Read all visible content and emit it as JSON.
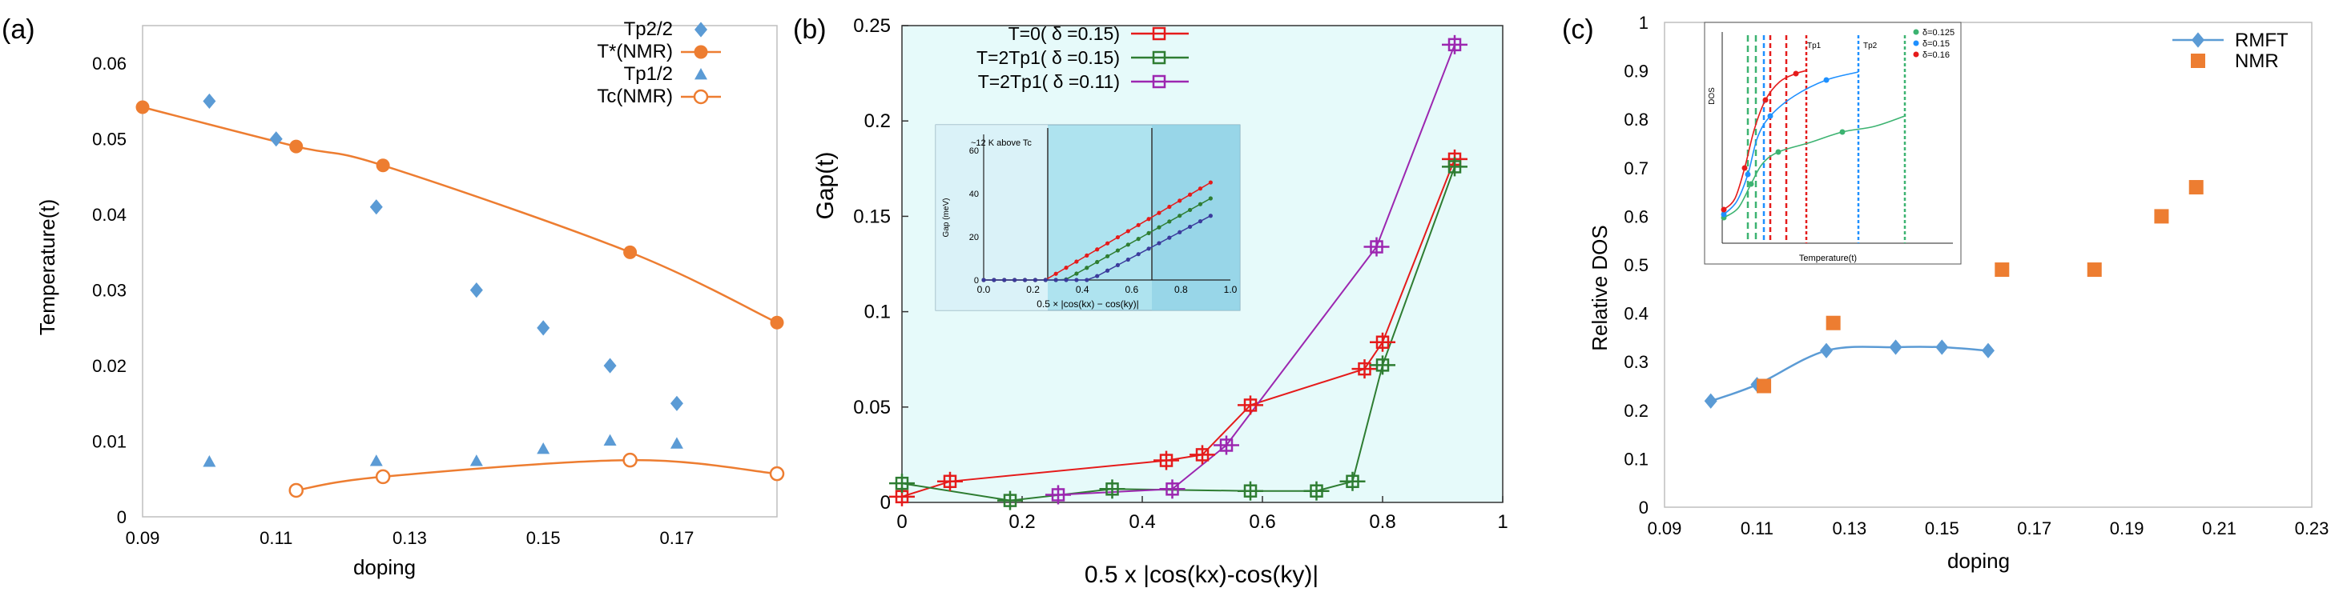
{
  "chart_data": [
    {
      "panel_label": "(a)",
      "type": "scatter",
      "xlabel": "doping",
      "ylabel": "Temperature(t)",
      "xlim": [
        0.09,
        0.185
      ],
      "ylim": [
        0,
        0.065
      ],
      "xticks": [
        "0.09",
        "0.11",
        "0.13",
        "0.15",
        "0.17"
      ],
      "xtick_values": [
        0.09,
        0.11,
        0.13,
        0.15,
        0.17
      ],
      "yticks": [
        "0",
        "0.01",
        "0.02",
        "0.03",
        "0.04",
        "0.05",
        "0.06"
      ],
      "ytick_values": [
        0,
        0.01,
        0.02,
        0.03,
        0.04,
        0.05,
        0.06
      ],
      "legend_position": "top-right",
      "series": [
        {
          "name": "Tp2/2",
          "marker": "diamond",
          "color": "#5b9bd5",
          "line": false,
          "x": [
            0.1,
            0.11,
            0.125,
            0.14,
            0.15,
            0.16,
            0.17
          ],
          "y": [
            0.055,
            0.05,
            0.041,
            0.03,
            0.025,
            0.02,
            0.015
          ]
        },
        {
          "name": "T*(NMR)",
          "marker": "circle-filled",
          "color": "#ed7d31",
          "line": true,
          "x": [
            0.09,
            0.113,
            0.126,
            0.163,
            0.185
          ],
          "y": [
            0.0542,
            0.049,
            0.0465,
            0.035,
            0.0257
          ]
        },
        {
          "name": "Tp1/2",
          "marker": "triangle",
          "color": "#5b9bd5",
          "line": false,
          "x": [
            0.1,
            0.125,
            0.14,
            0.15,
            0.16,
            0.17
          ],
          "y": [
            0.0073,
            0.0074,
            0.0074,
            0.009,
            0.0101,
            0.0097
          ]
        },
        {
          "name": "Tc(NMR)",
          "marker": "circle-open",
          "color": "#ed7d31",
          "line": true,
          "x": [
            0.113,
            0.126,
            0.163,
            0.185
          ],
          "y": [
            0.0035,
            0.0053,
            0.0075,
            0.0057
          ]
        }
      ]
    },
    {
      "panel_label": "(b)",
      "type": "line",
      "xlabel": "0.5 x |cos(kx)-cos(ky)|",
      "ylabel": "Gap(t)",
      "xlim": [
        0,
        1
      ],
      "ylim": [
        0,
        0.25
      ],
      "xticks": [
        "0",
        "0.2",
        "0.4",
        "0.6",
        "0.8",
        "1"
      ],
      "xtick_values": [
        0,
        0.2,
        0.4,
        0.6,
        0.8,
        1.0
      ],
      "yticks": [
        "0",
        "0.05",
        "0.1",
        "0.15",
        "0.2",
        "0.25"
      ],
      "ytick_values": [
        0,
        0.05,
        0.1,
        0.15,
        0.2,
        0.25
      ],
      "legend_position": "top-center",
      "background": "#e6fafa",
      "series": [
        {
          "name": "T=0( δ =0.15)",
          "color": "#e51b1b",
          "marker": "open-square",
          "x": [
            0,
            0.08,
            0.44,
            0.5,
            0.58,
            0.77,
            0.8,
            0.92
          ],
          "y": [
            0.003,
            0.011,
            0.022,
            0.025,
            0.051,
            0.07,
            0.084,
            0.18
          ]
        },
        {
          "name": "T=2Tp1( δ =0.15)",
          "color": "#2e7d32",
          "marker": "open-square",
          "x": [
            0,
            0.18,
            0.35,
            0.58,
            0.69,
            0.75,
            0.8,
            0.92
          ],
          "y": [
            0.01,
            0.001,
            0.007,
            0.006,
            0.006,
            0.011,
            0.072,
            0.176
          ]
        },
        {
          "name": "T=2Tp1( δ =0.11)",
          "color": "#9c27b0",
          "marker": "open-square",
          "x": [
            0.26,
            0.45,
            0.54,
            0.79,
            0.92
          ],
          "y": [
            0.004,
            0.007,
            0.03,
            0.134,
            0.24
          ]
        }
      ],
      "inset": {
        "ylabel": "Gap (meV)",
        "xlabel": "0.5 × |cos(kx) − cos(ky)|",
        "xticks": [
          "0.0",
          "0.2",
          "0.4",
          "0.6",
          "0.8",
          "1.0"
        ],
        "yticks": [
          "0",
          "20",
          "40",
          "60"
        ],
        "annotation": "~12 K above Tc"
      }
    },
    {
      "panel_label": "(c)",
      "type": "scatter",
      "xlabel": "doping",
      "ylabel": "Relative DOS",
      "xlim": [
        0.09,
        0.23
      ],
      "ylim": [
        0,
        1
      ],
      "xticks": [
        "0.09",
        "0.11",
        "0.13",
        "0.15",
        "0.17",
        "0.19",
        "0.21",
        "0.23"
      ],
      "xtick_values": [
        0.09,
        0.11,
        0.13,
        0.15,
        0.17,
        0.19,
        0.21,
        0.23
      ],
      "yticks": [
        "0",
        "0.1",
        "0.2",
        "0.3",
        "0.4",
        "0.5",
        "0.6",
        "0.7",
        "0.8",
        "0.9",
        "1"
      ],
      "ytick_values": [
        0,
        0.1,
        0.2,
        0.3,
        0.4,
        0.5,
        0.6,
        0.7,
        0.8,
        0.9,
        1.0
      ],
      "legend_position": "top-right",
      "series": [
        {
          "name": "RMFT",
          "marker": "diamond",
          "color": "#5b9bd5",
          "line": true,
          "x": [
            0.1,
            0.11,
            0.125,
            0.14,
            0.15,
            0.16
          ],
          "y": [
            0.219,
            0.253,
            0.323,
            0.33,
            0.33,
            0.323
          ]
        },
        {
          "name": "NMR",
          "marker": "square",
          "color": "#ed7d31",
          "line": false,
          "x": [
            0.1115,
            0.1265,
            0.163,
            0.183,
            0.1975,
            0.205
          ],
          "y": [
            0.25,
            0.38,
            0.49,
            0.49,
            0.6,
            0.66
          ]
        }
      ],
      "inset": {
        "xlabel": "Temperature(t)",
        "ylabel": "DOS",
        "legend": [
          "δ=0.125",
          "δ=0.15",
          "δ=0.16"
        ],
        "legend_colors": [
          "#3cb371",
          "#1e90ff",
          "#e51b1b"
        ],
        "line_labels": [
          "Tp1",
          "Tp2"
        ]
      }
    }
  ]
}
